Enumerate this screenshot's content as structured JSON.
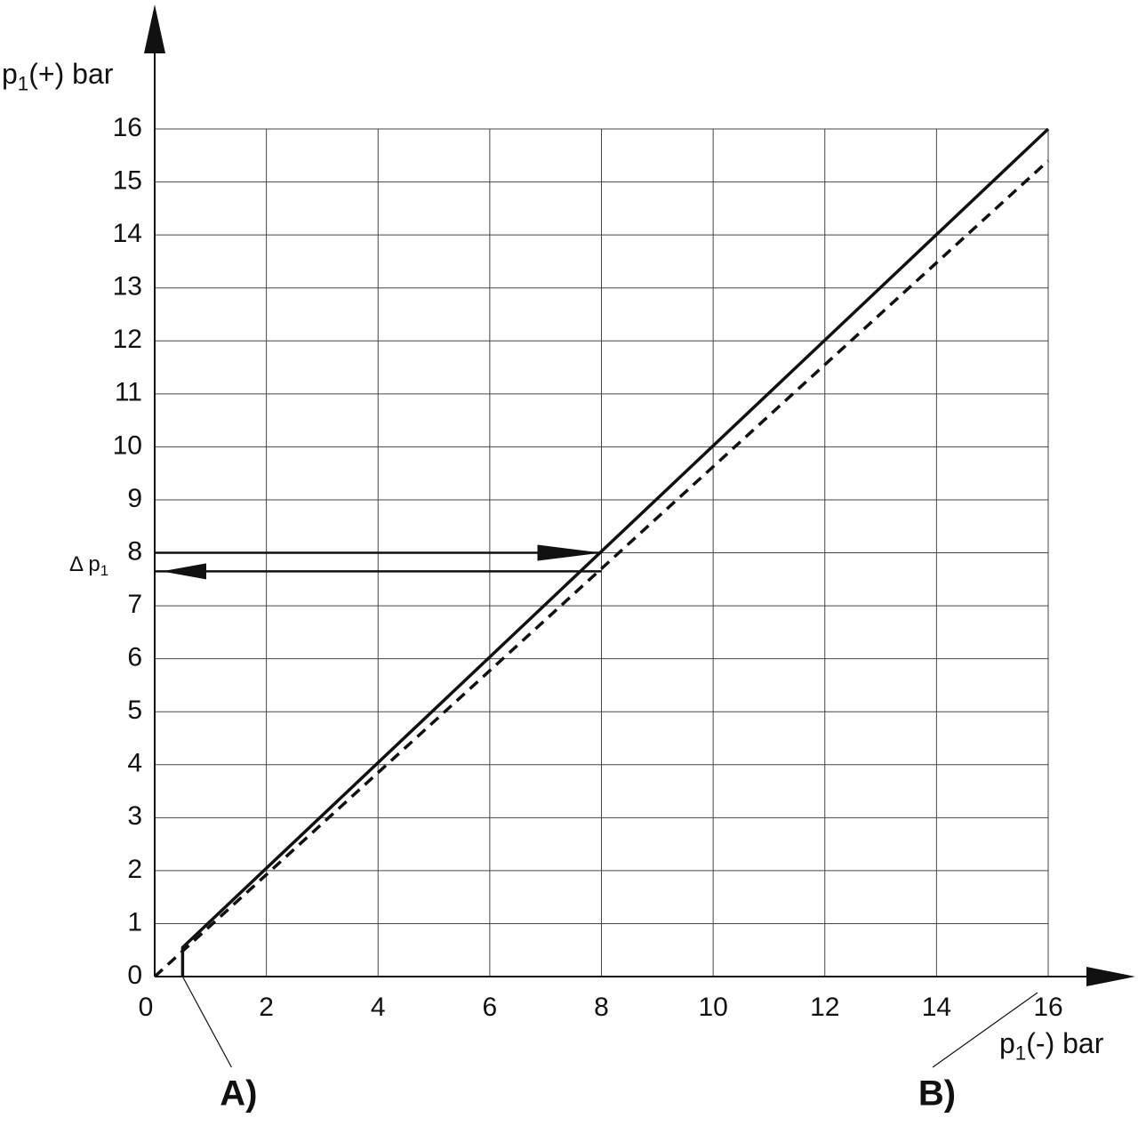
{
  "chart_data": {
    "type": "line",
    "y_label": {
      "base": "p",
      "sub": "1",
      "rest": "(+) bar"
    },
    "x_label": {
      "base": "p",
      "sub": "1",
      "rest": "(-) bar"
    },
    "xlim": [
      0,
      16
    ],
    "ylim": [
      0,
      16
    ],
    "xticks": [
      0,
      2,
      4,
      6,
      8,
      10,
      12,
      14,
      16
    ],
    "yticks": [
      0,
      1,
      2,
      3,
      4,
      5,
      6,
      7,
      8,
      9,
      10,
      11,
      12,
      13,
      14,
      15,
      16
    ],
    "grid": true,
    "series": [
      {
        "color": "#111111",
        "dashed": false,
        "x": [
          0.5,
          0.5,
          16
        ],
        "values": [
          0,
          0.55,
          16
        ]
      },
      {
        "color": "#111111",
        "dashed": true,
        "x": [
          0,
          16
        ],
        "values": [
          0,
          15.4
        ]
      }
    ],
    "arrows": [
      {
        "y": 8,
        "x": [
          0,
          8
        ],
        "direction": "right"
      },
      {
        "y": 7.65,
        "x": [
          0,
          8
        ],
        "direction": "left"
      }
    ],
    "delta_label": {
      "base": "Δ p",
      "sub": "1"
    },
    "annotations": [
      {
        "text": "A)",
        "x": 0.5
      },
      {
        "text": "B)",
        "x": 16
      }
    ]
  }
}
